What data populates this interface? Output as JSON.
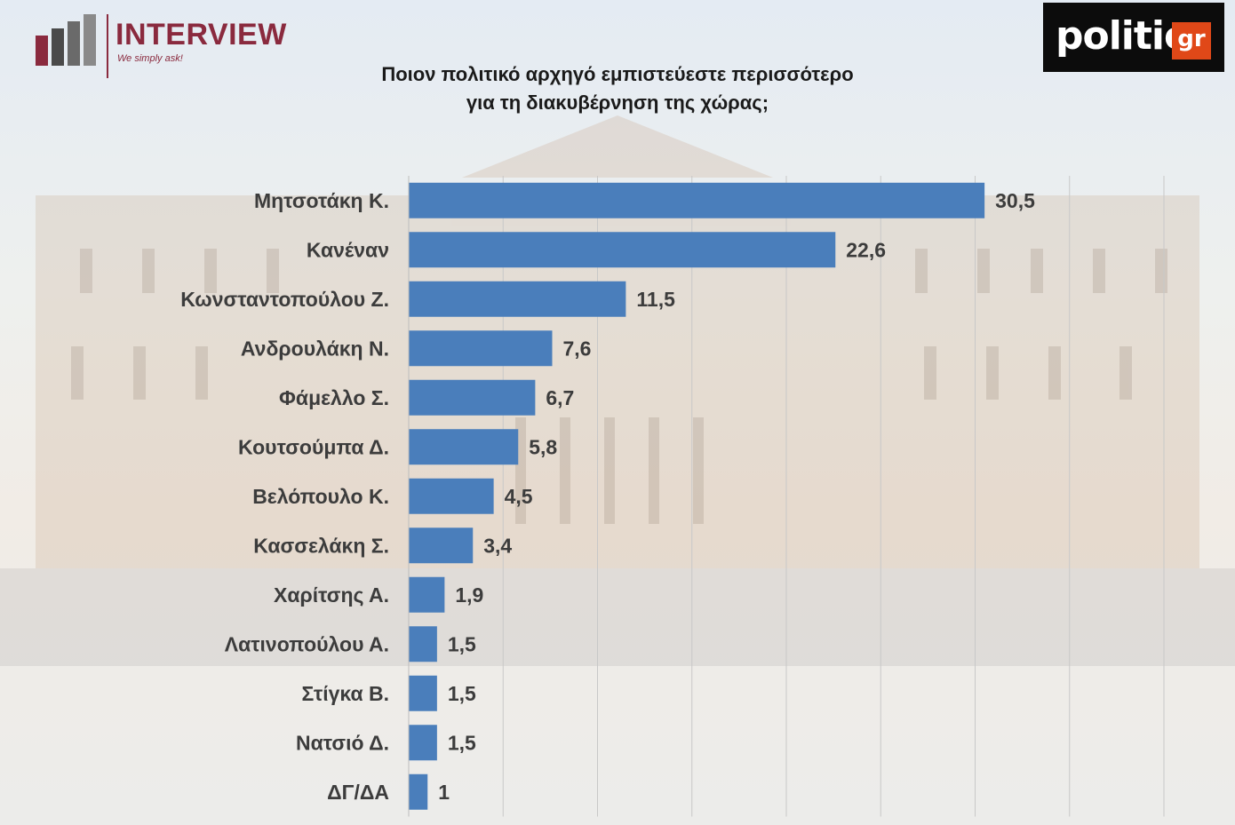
{
  "brand": {
    "interview_name": "INTERVIEW",
    "interview_tagline": "We simply ask!",
    "interview_color": "#8a2a3e",
    "politic_name": "politic",
    "politic_suffix": "gr",
    "politic_accent": "#e04818"
  },
  "chart_data": {
    "type": "bar",
    "orientation": "horizontal",
    "title": [
      "Ποιον πολιτικό αρχηγό εμπιστεύεστε περισσότερο",
      "για τη διακυβέρνηση της χώρας;"
    ],
    "categories": [
      "Μητσοτάκη Κ.",
      "Κανέναν",
      "Κωνσταντοπούλου Ζ.",
      "Ανδρουλάκη Ν.",
      "Φάμελλο Σ.",
      "Κουτσούμπα Δ.",
      "Βελόπουλο Κ.",
      "Κασσελάκη Σ.",
      "Χαρίτσης Α.",
      "Λατινοπούλου Α.",
      "Στίγκα Β.",
      "Νατσιό Δ.",
      "ΔΓ/ΔΑ"
    ],
    "values": [
      30.5,
      22.6,
      11.5,
      7.6,
      6.7,
      5.8,
      4.5,
      3.4,
      1.9,
      1.5,
      1.5,
      1.5,
      1
    ],
    "value_labels": [
      "30,5",
      "22,6",
      "11,5",
      "7,6",
      "6,7",
      "5,8",
      "4,5",
      "3,4",
      "1,9",
      "1,5",
      "1,5",
      "1,5",
      "1"
    ],
    "xlim": [
      0,
      40
    ],
    "grid": true,
    "legend": "none",
    "bar_color": "#4a7ebb"
  }
}
